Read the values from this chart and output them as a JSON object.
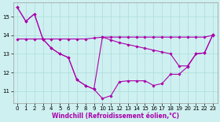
{
  "xlabel": "Windchill (Refroidissement éolien,°C)",
  "bg_color": "#cff0f0",
  "line_color": "#aa00aa",
  "grid_color": "#aadddd",
  "hours": [
    0,
    1,
    2,
    3,
    4,
    5,
    6,
    7,
    8,
    9,
    10,
    11,
    12,
    13,
    14,
    15,
    16,
    17,
    18,
    19,
    20,
    21,
    22,
    23
  ],
  "line_flat": [
    13.8,
    13.8,
    13.8,
    13.8,
    13.8,
    13.8,
    13.8,
    13.8,
    13.8,
    13.85,
    13.9,
    13.9,
    13.9,
    13.9,
    13.9,
    13.9,
    13.9,
    13.9,
    13.9,
    13.9,
    13.9,
    13.9,
    13.9,
    14.0
  ],
  "line_straight": [
    15.5,
    14.75,
    15.15,
    13.8,
    13.3,
    13.0,
    12.8,
    11.6,
    11.3,
    11.1,
    13.9,
    13.75,
    13.6,
    13.5,
    13.4,
    13.3,
    13.2,
    13.1,
    13.0,
    12.35,
    12.35,
    13.0,
    13.05,
    14.05
  ],
  "line_wavy": [
    15.5,
    14.75,
    15.15,
    13.8,
    13.3,
    13.0,
    12.8,
    11.6,
    11.3,
    11.1,
    10.6,
    10.75,
    11.5,
    11.55,
    11.55,
    11.55,
    11.3,
    11.4,
    11.9,
    11.9,
    12.3,
    13.0,
    13.05,
    14.05
  ],
  "xlim": [
    -0.5,
    23.5
  ],
  "ylim": [
    10.35,
    15.75
  ],
  "yticks": [
    11,
    12,
    13,
    14,
    15
  ],
  "xticks": [
    0,
    1,
    2,
    3,
    4,
    5,
    6,
    7,
    8,
    9,
    10,
    11,
    12,
    13,
    14,
    15,
    16,
    17,
    18,
    19,
    20,
    21,
    22,
    23
  ],
  "tick_fontsize": 5.0,
  "xlabel_fontsize": 5.5,
  "marker_size": 1.8,
  "line_width": 0.8
}
